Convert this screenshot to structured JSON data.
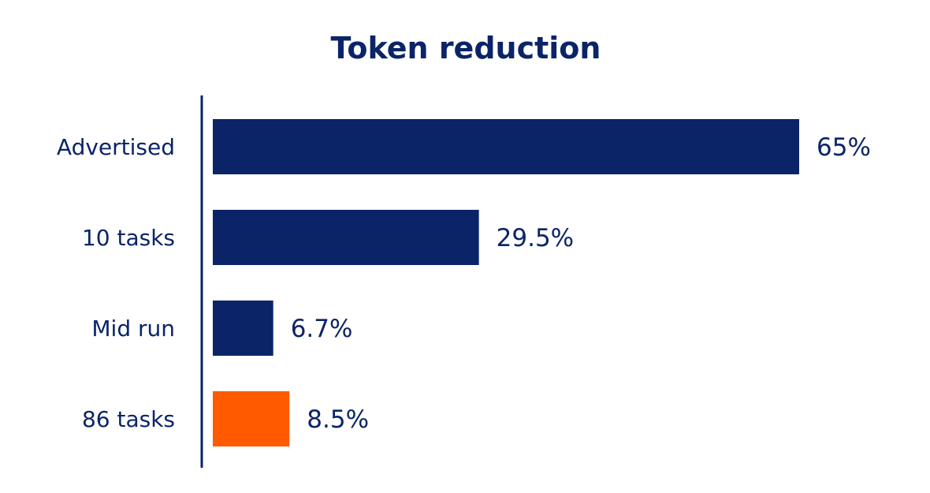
{
  "chart_data": {
    "type": "bar",
    "orientation": "horizontal",
    "title": "Token reduction",
    "categories": [
      "Advertised",
      "10 tasks",
      "Mid run",
      "86 tasks"
    ],
    "values": [
      65,
      29.5,
      6.7,
      8.5
    ],
    "value_labels": [
      "65%",
      "29.5%",
      "6.7%",
      "8.5%"
    ],
    "xlim": [
      0,
      65
    ],
    "unit": "%",
    "grid": false,
    "legend": "none",
    "colors": {
      "primary": "#0b2468",
      "highlight": "#ff5a00",
      "text": "#0b2468",
      "axis": "#0b2468"
    },
    "bar_colors": [
      "#0b2468",
      "#0b2468",
      "#0b2468",
      "#ff5a00"
    ]
  }
}
